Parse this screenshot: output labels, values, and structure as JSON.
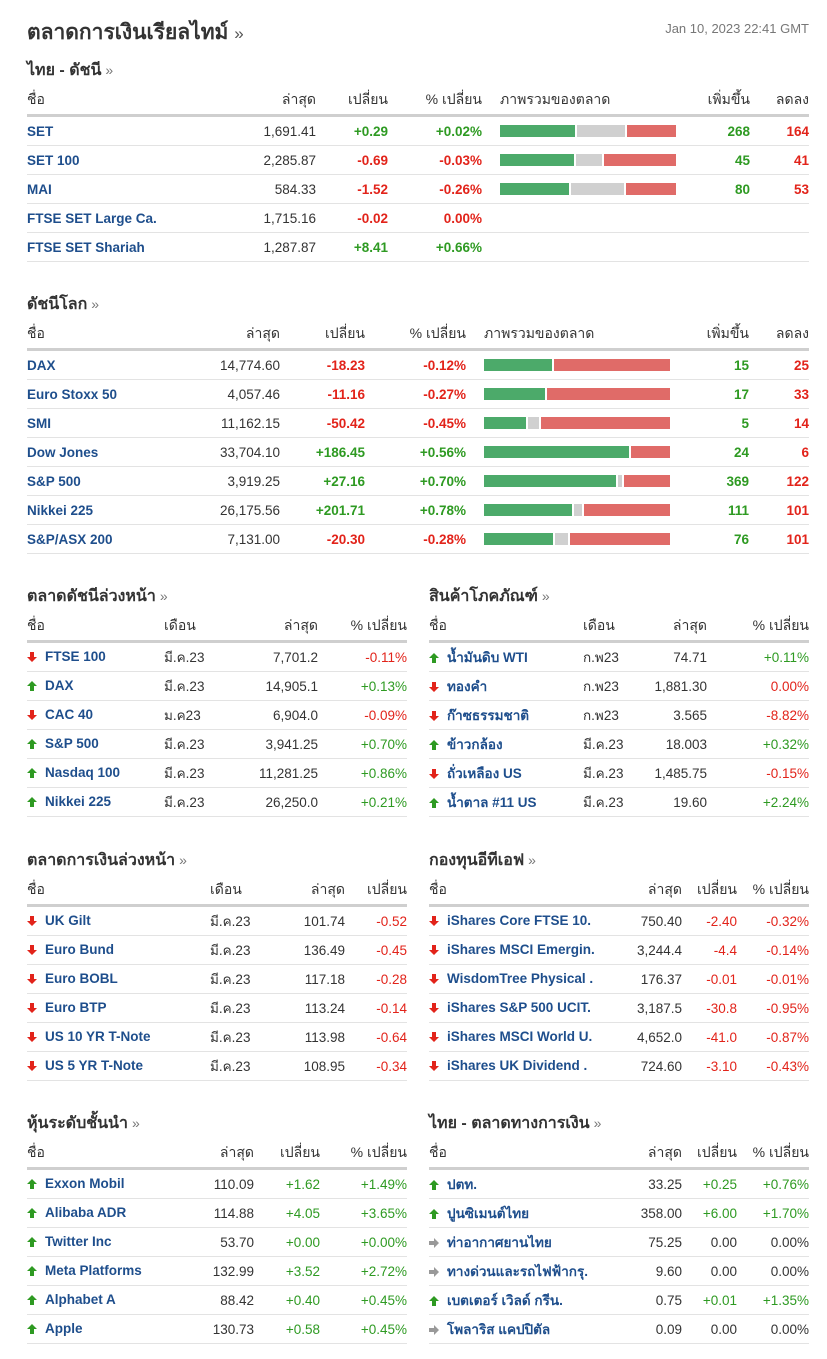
{
  "header": {
    "title": "ตลาดการเงินเรียลไทม์",
    "more": "»",
    "timestamp": "Jan 10, 2023 22:41 GMT"
  },
  "colors": {
    "up": "#2e9a22",
    "down": "#e2231a",
    "name": "#1e4e8c",
    "bar_up": "#4caa6a",
    "bar_unchanged": "#d0d0d0",
    "bar_down": "#e06b68"
  },
  "sections": [
    {
      "id": "thai-indices",
      "title": "ไทย - ดัชนี",
      "more": "»",
      "headers": [
        "ชื่อ",
        "ล่าสุด",
        "เปลี่ยน",
        "% เปลี่ยน",
        "ภาพรวมของตลาด",
        "เพิ่มขึ้น",
        "ลดลง"
      ],
      "rows": [
        {
          "name": "SET",
          "last": "1,691.41",
          "change": "+0.29",
          "pct": "+0.02%",
          "dir": "up",
          "breadth": {
            "up_pct": 43,
            "unchanged_pct": 28,
            "down_pct": 28
          },
          "advancers": "268",
          "decliners": "164"
        },
        {
          "name": "SET 100",
          "last": "2,285.87",
          "change": "-0.69",
          "pct": "-0.03%",
          "dir": "down",
          "breadth": {
            "up_pct": 43,
            "unchanged_pct": 15,
            "down_pct": 42
          },
          "advancers": "45",
          "decliners": "41"
        },
        {
          "name": "MAI",
          "last": "584.33",
          "change": "-1.52",
          "pct": "-0.26%",
          "dir": "down",
          "breadth": {
            "up_pct": 40,
            "unchanged_pct": 31,
            "down_pct": 29
          },
          "advancers": "80",
          "decliners": "53"
        },
        {
          "name": "FTSE SET Large Ca.",
          "last": "1,715.16",
          "change": "-0.02",
          "pct": "0.00%",
          "dir": "down",
          "advancers": "",
          "decliners": ""
        },
        {
          "name": "FTSE SET Shariah",
          "last": "1,287.87",
          "change": "+8.41",
          "pct": "+0.66%",
          "dir": "up",
          "advancers": "",
          "decliners": ""
        }
      ]
    },
    {
      "id": "world-indices",
      "title": "ดัชนีโลก",
      "more": "»",
      "headers": [
        "ชื่อ",
        "ล่าสุด",
        "เปลี่ยน",
        "% เปลี่ยน",
        "ภาพรวมของตลาด",
        "เพิ่มขึ้น",
        "ลดลง"
      ],
      "rows": [
        {
          "name": "DAX",
          "last": "14,774.60",
          "change": "-18.23",
          "pct": "-0.12%",
          "dir": "down",
          "breadth": {
            "up_pct": 37,
            "unchanged_pct": 0,
            "down_pct": 63
          },
          "advancers": "15",
          "decliners": "25"
        },
        {
          "name": "Euro Stoxx 50",
          "last": "4,057.46",
          "change": "-11.16",
          "pct": "-0.27%",
          "dir": "down",
          "breadth": {
            "up_pct": 33,
            "unchanged_pct": 0,
            "down_pct": 67
          },
          "advancers": "17",
          "decliners": "33"
        },
        {
          "name": "SMI",
          "last": "11,162.15",
          "change": "-50.42",
          "pct": "-0.45%",
          "dir": "down",
          "breadth": {
            "up_pct": 23,
            "unchanged_pct": 6,
            "down_pct": 71
          },
          "advancers": "5",
          "decliners": "14"
        },
        {
          "name": "Dow Jones",
          "last": "33,704.10",
          "change": "+186.45",
          "pct": "+0.56%",
          "dir": "up",
          "breadth": {
            "up_pct": 79,
            "unchanged_pct": 0,
            "down_pct": 21
          },
          "advancers": "24",
          "decliners": "6"
        },
        {
          "name": "S&P 500",
          "last": "3,919.25",
          "change": "+27.16",
          "pct": "+0.70%",
          "dir": "up",
          "breadth": {
            "up_pct": 72,
            "unchanged_pct": 2,
            "down_pct": 25
          },
          "advancers": "369",
          "decliners": "122"
        },
        {
          "name": "Nikkei 225",
          "last": "26,175.56",
          "change": "+201.71",
          "pct": "+0.78%",
          "dir": "up",
          "breadth": {
            "up_pct": 48,
            "unchanged_pct": 4,
            "down_pct": 47
          },
          "advancers": "111",
          "decliners": "101"
        },
        {
          "name": "S&P/ASX 200",
          "last": "7,131.00",
          "change": "-20.30",
          "pct": "-0.28%",
          "dir": "down",
          "breadth": {
            "up_pct": 38,
            "unchanged_pct": 7,
            "down_pct": 55
          },
          "advancers": "76",
          "decliners": "101"
        }
      ]
    },
    {
      "id": "index-futures",
      "title": "ตลาดดัชนีล่วงหน้า",
      "more": "»",
      "headers": [
        "ชื่อ",
        "เดือน",
        "ล่าสุด",
        "% เปลี่ยน"
      ],
      "rows": [
        {
          "name": "FTSE 100",
          "month": "มี.ค.23",
          "last": "7,701.2",
          "pct": "-0.11%",
          "dir": "down"
        },
        {
          "name": "DAX",
          "month": "มี.ค.23",
          "last": "14,905.1",
          "pct": "+0.13%",
          "dir": "up"
        },
        {
          "name": "CAC 40",
          "month": "ม.ค23",
          "last": "6,904.0",
          "pct": "-0.09%",
          "dir": "down"
        },
        {
          "name": "S&P 500",
          "month": "มี.ค.23",
          "last": "3,941.25",
          "pct": "+0.70%",
          "dir": "up"
        },
        {
          "name": "Nasdaq 100",
          "month": "มี.ค.23",
          "last": "11,281.25",
          "pct": "+0.86%",
          "dir": "up"
        },
        {
          "name": "Nikkei 225",
          "month": "มี.ค.23",
          "last": "26,250.0",
          "pct": "+0.21%",
          "dir": "up"
        }
      ]
    },
    {
      "id": "commodities",
      "title": "สินค้าโภคภัณฑ์",
      "more": "»",
      "headers": [
        "ชื่อ",
        "เดือน",
        "ล่าสุด",
        "% เปลี่ยน"
      ],
      "rows": [
        {
          "name": "น้ำมันดิบ WTI",
          "month": "ก.พ23",
          "last": "74.71",
          "pct": "+0.11%",
          "dir": "up"
        },
        {
          "name": "ทองคำ",
          "month": "ก.พ23",
          "last": "1,881.30",
          "pct": "0.00%",
          "dir": "down"
        },
        {
          "name": "ก๊าซธรรมชาติ",
          "month": "ก.พ23",
          "last": "3.565",
          "pct": "-8.82%",
          "dir": "down"
        },
        {
          "name": "ข้าวกล้อง",
          "month": "มี.ค.23",
          "last": "18.003",
          "pct": "+0.32%",
          "dir": "up"
        },
        {
          "name": "ถั่วเหลือง US",
          "month": "มี.ค.23",
          "last": "1,485.75",
          "pct": "-0.15%",
          "dir": "down"
        },
        {
          "name": "น้ำตาล #11 US",
          "month": "มี.ค.23",
          "last": "19.60",
          "pct": "+2.24%",
          "dir": "up"
        }
      ]
    },
    {
      "id": "bond-futures",
      "title": "ตลาดการเงินล่วงหน้า",
      "more": "»",
      "headers": [
        "ชื่อ",
        "เดือน",
        "ล่าสุด",
        "เปลี่ยน"
      ],
      "rows": [
        {
          "name": "UK Gilt",
          "month": "มี.ค.23",
          "last": "101.74",
          "change": "-0.52",
          "dir": "down"
        },
        {
          "name": "Euro Bund",
          "month": "มี.ค.23",
          "last": "136.49",
          "change": "-0.45",
          "dir": "down"
        },
        {
          "name": "Euro BOBL",
          "month": "มี.ค.23",
          "last": "117.18",
          "change": "-0.28",
          "dir": "down"
        },
        {
          "name": "Euro BTP",
          "month": "มี.ค.23",
          "last": "113.24",
          "change": "-0.14",
          "dir": "down"
        },
        {
          "name": "US 10 YR T-Note",
          "month": "มี.ค.23",
          "last": "113.98",
          "change": "-0.64",
          "dir": "down"
        },
        {
          "name": "US 5 YR T-Note",
          "month": "มี.ค.23",
          "last": "108.95",
          "change": "-0.34",
          "dir": "down"
        }
      ]
    },
    {
      "id": "etfs",
      "title": "กองทุนอีทีเอฟ",
      "more": "»",
      "headers": [
        "ชื่อ",
        "ล่าสุด",
        "เปลี่ยน",
        "% เปลี่ยน"
      ],
      "rows": [
        {
          "name": "iShares Core FTSE 10.",
          "last": "750.40",
          "change": "-2.40",
          "pct": "-0.32%",
          "dir": "down"
        },
        {
          "name": "iShares MSCI Emergin.",
          "last": "3,244.4",
          "change": "-4.4",
          "pct": "-0.14%",
          "dir": "down"
        },
        {
          "name": "WisdomTree Physical .",
          "last": "176.37",
          "change": "-0.01",
          "pct": "-0.01%",
          "dir": "down"
        },
        {
          "name": "iShares S&P 500 UCIT.",
          "last": "3,187.5",
          "change": "-30.8",
          "pct": "-0.95%",
          "dir": "down"
        },
        {
          "name": "iShares MSCI World U.",
          "last": "4,652.0",
          "change": "-41.0",
          "pct": "-0.87%",
          "dir": "down"
        },
        {
          "name": "iShares UK Dividend .",
          "last": "724.60",
          "change": "-3.10",
          "pct": "-0.43%",
          "dir": "down"
        }
      ]
    },
    {
      "id": "top-stocks",
      "title": "หุ้นระดับชั้นนำ",
      "more": "»",
      "headers": [
        "ชื่อ",
        "ล่าสุด",
        "เปลี่ยน",
        "% เปลี่ยน"
      ],
      "rows": [
        {
          "name": "Exxon Mobil",
          "last": "110.09",
          "change": "+1.62",
          "pct": "+1.49%",
          "dir": "up"
        },
        {
          "name": "Alibaba ADR",
          "last": "114.88",
          "change": "+4.05",
          "pct": "+3.65%",
          "dir": "up"
        },
        {
          "name": "Twitter Inc",
          "last": "53.70",
          "change": "+0.00",
          "pct": "+0.00%",
          "dir": "up"
        },
        {
          "name": "Meta Platforms",
          "last": "132.99",
          "change": "+3.52",
          "pct": "+2.72%",
          "dir": "up"
        },
        {
          "name": "Alphabet A",
          "last": "88.42",
          "change": "+0.40",
          "pct": "+0.45%",
          "dir": "up"
        },
        {
          "name": "Apple",
          "last": "130.73",
          "change": "+0.58",
          "pct": "+0.45%",
          "dir": "up"
        }
      ]
    },
    {
      "id": "thai-money",
      "title": "ไทย - ตลาดทางการเงิน",
      "more": "»",
      "headers": [
        "ชื่อ",
        "ล่าสุด",
        "เปลี่ยน",
        "% เปลี่ยน"
      ],
      "rows": [
        {
          "name": "ปตท.",
          "last": "33.25",
          "change": "+0.25",
          "pct": "+0.76%",
          "dir": "up"
        },
        {
          "name": "ปูนซิเมนต์ไทย",
          "last": "358.00",
          "change": "+6.00",
          "pct": "+1.70%",
          "dir": "up"
        },
        {
          "name": "ท่าอากาศยานไทย",
          "last": "75.25",
          "change": "0.00",
          "pct": "0.00%",
          "dir": "flat"
        },
        {
          "name": "ทางด่วนและรถไฟฟ้ากรุ.",
          "last": "9.60",
          "change": "0.00",
          "pct": "0.00%",
          "dir": "flat"
        },
        {
          "name": "เบตเตอร์ เวิลด์ กรีน.",
          "last": "0.75",
          "change": "+0.01",
          "pct": "+1.35%",
          "dir": "up"
        },
        {
          "name": "โพลาริส แคปปิตัล",
          "last": "0.09",
          "change": "0.00",
          "pct": "0.00%",
          "dir": "flat"
        }
      ]
    }
  ]
}
